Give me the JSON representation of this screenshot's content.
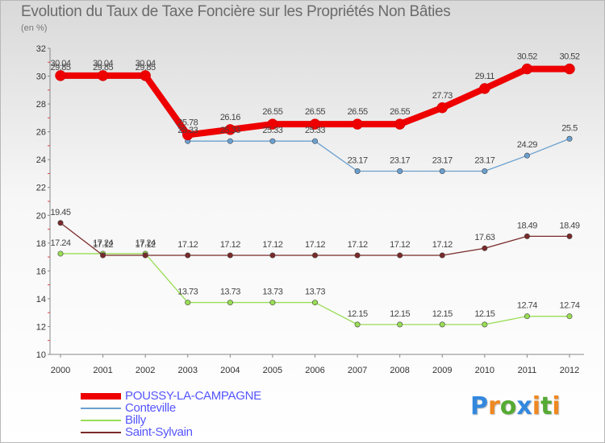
{
  "chart_data": {
    "type": "line",
    "title": "Evolution du Taux de Taxe Foncière sur les Propriétés Non Bâties",
    "subtitle": "(en %)",
    "x": [
      "2000",
      "2001",
      "2002",
      "2003",
      "2004",
      "2005",
      "2006",
      "2007",
      "2008",
      "2009",
      "2010",
      "2011",
      "2012"
    ],
    "ylim": [
      10,
      32
    ],
    "yticks": [
      10,
      12,
      14,
      16,
      18,
      20,
      22,
      24,
      26,
      28,
      30,
      32
    ],
    "grid": false,
    "legend_position": "bottom-left",
    "series": [
      {
        "name": "POUSSY-LA-CAMPAGNE",
        "color": "#ee0000",
        "values": [
          30.04,
          30.04,
          30.04,
          25.78,
          26.16,
          26.55,
          26.55,
          26.55,
          26.55,
          27.73,
          29.11,
          30.52,
          30.52
        ],
        "labels": [
          "30.04",
          "30.04",
          "30.04",
          "25.78",
          "26.16",
          "26.55",
          "26.55",
          "26.55",
          "26.55",
          "27.73",
          "29.11",
          "30.52",
          "30.52"
        ]
      },
      {
        "name": "Conteville",
        "color": "#6aa0d0",
        "values": [
          29.85,
          29.85,
          29.85,
          25.33,
          25.33,
          25.33,
          25.33,
          23.17,
          23.17,
          23.17,
          23.17,
          24.29,
          25.5
        ],
        "labels": [
          "29.85",
          "29.85",
          "29.85",
          "25.33",
          "25.33",
          "25.33",
          "25.33",
          "23.17",
          "23.17",
          "23.17",
          "23.17",
          "24.29",
          "25.5"
        ]
      },
      {
        "name": "Billy",
        "color": "#99dd55",
        "values": [
          17.24,
          17.24,
          17.24,
          13.73,
          13.73,
          13.73,
          13.73,
          12.15,
          12.15,
          12.15,
          12.15,
          12.74,
          12.74
        ],
        "labels": [
          "17.24",
          "17.24",
          "17.24",
          "13.73",
          "13.73",
          "13.73",
          "13.73",
          "12.15",
          "12.15",
          "12.15",
          "12.15",
          "12.74",
          "12.74"
        ]
      },
      {
        "name": "Saint-Sylvain",
        "color": "#7a2a2a",
        "values": [
          19.45,
          17.12,
          17.12,
          17.12,
          17.12,
          17.12,
          17.12,
          17.12,
          17.12,
          17.12,
          17.63,
          18.49,
          18.49
        ],
        "labels": [
          "19.45",
          "17.12",
          "17.12",
          "17.12",
          "17.12",
          "17.12",
          "17.12",
          "17.12",
          "17.12",
          "17.12",
          "17.63",
          "18.49",
          "18.49"
        ]
      }
    ]
  },
  "logo": {
    "letters": [
      "P",
      "r",
      "o",
      "x",
      "i",
      "t",
      "i"
    ],
    "colors": [
      "#3388dd",
      "#ee8822",
      "#55aa33",
      "#3388dd",
      "#ee8822",
      "#55aa33",
      "#ee8822"
    ]
  }
}
